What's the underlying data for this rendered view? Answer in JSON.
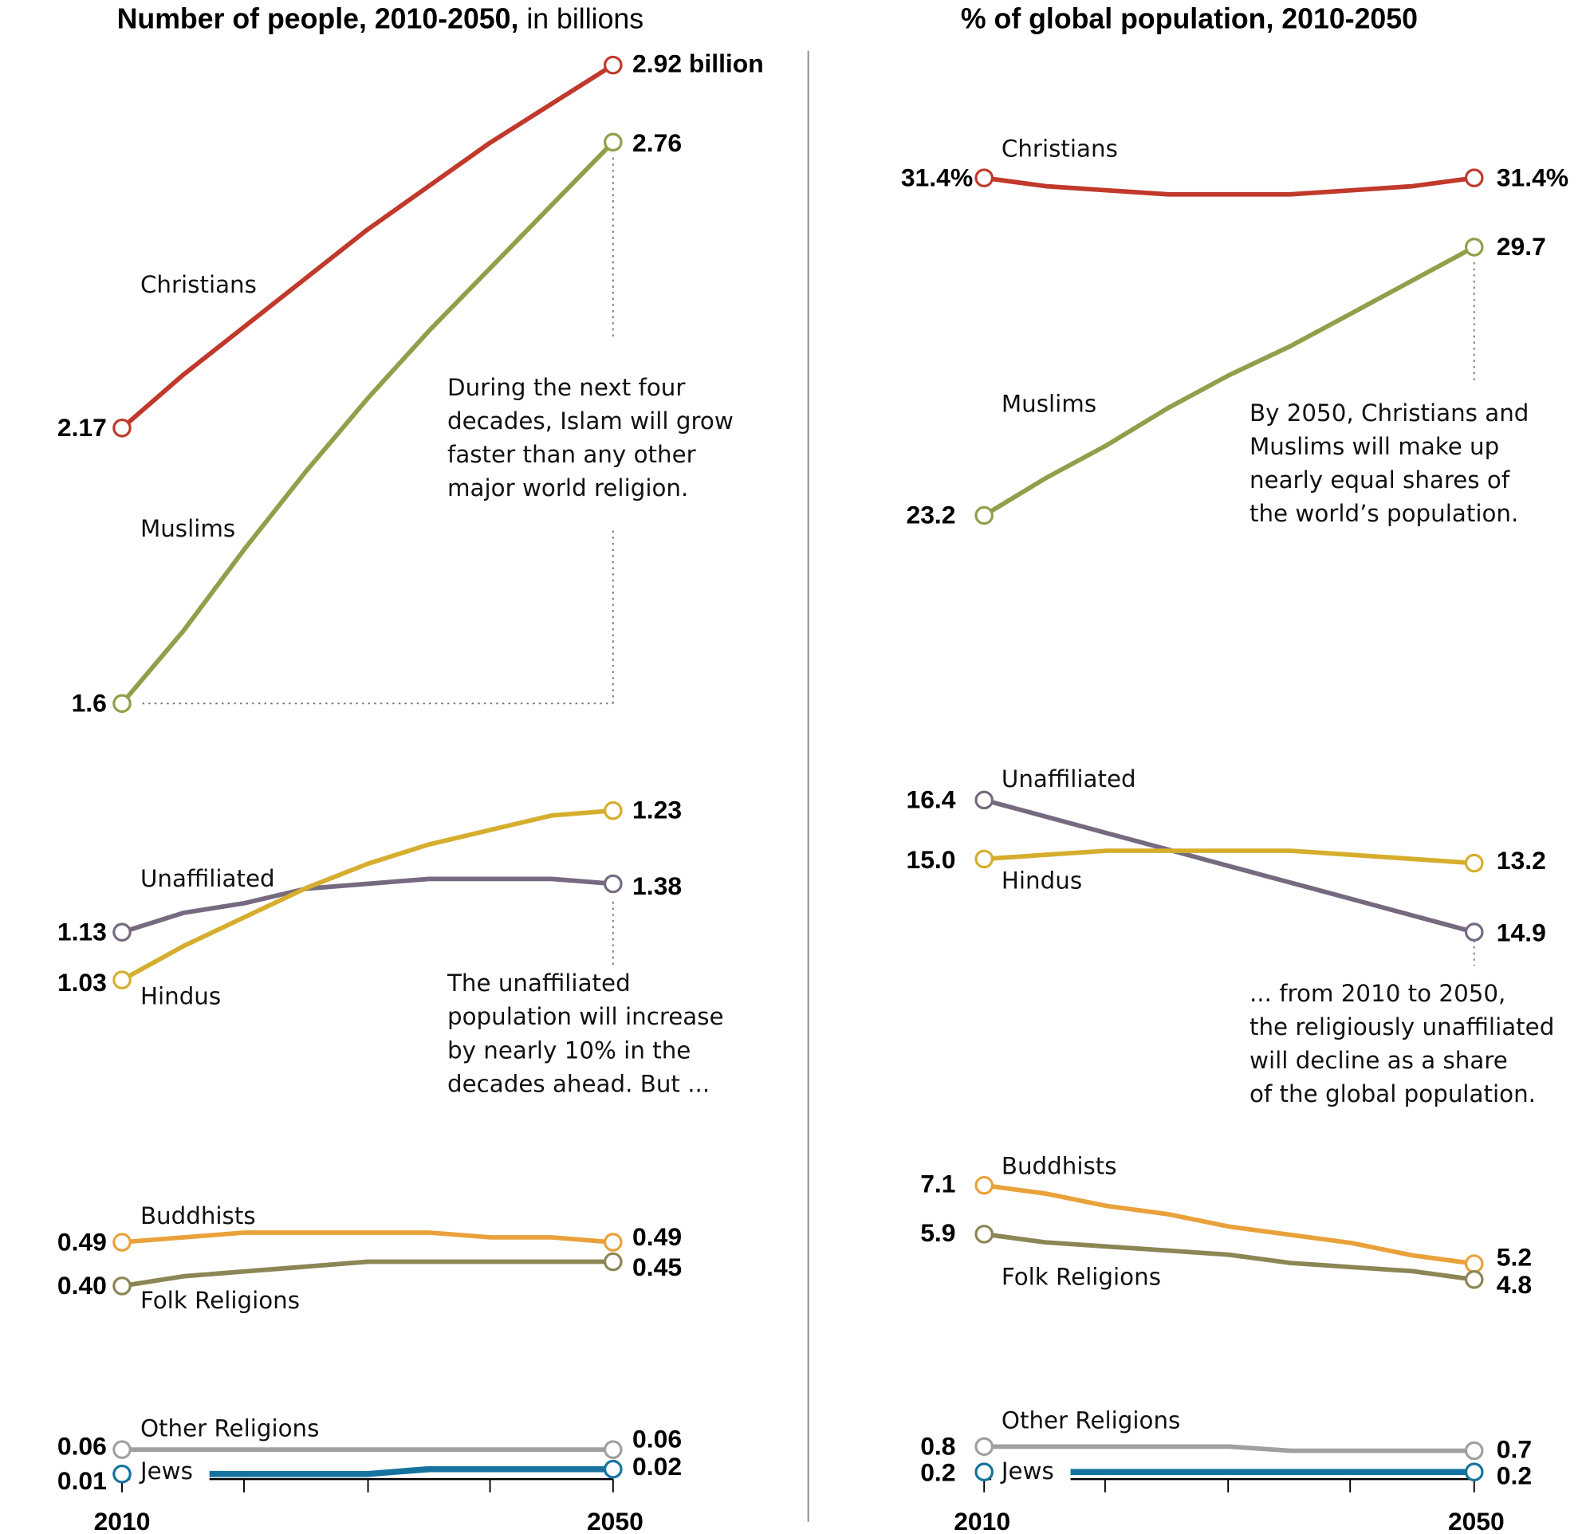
{
  "chart_data": [
    {
      "type": "line",
      "title": "Number of people, 2010-2050,",
      "title_suffix": "in billions",
      "x": [
        2010,
        2015,
        2020,
        2025,
        2030,
        2035,
        2040,
        2045,
        2050
      ],
      "x_tick_labels": [
        "2010",
        "2050"
      ],
      "series": [
        {
          "name": "Christians",
          "color": "#c0392b",
          "values": [
            2.17,
            2.28,
            2.38,
            2.48,
            2.58,
            2.67,
            2.76,
            2.84,
            2.92
          ],
          "start_label": "2.17",
          "end_label": "2.92 billion"
        },
        {
          "name": "Muslims",
          "color": "#8fa04a",
          "values": [
            1.6,
            1.75,
            1.92,
            2.08,
            2.23,
            2.37,
            2.5,
            2.63,
            2.76
          ],
          "start_label": "1.6",
          "end_label": "2.76"
        },
        {
          "name": "Unaffiliated",
          "color": "#766a80",
          "values": [
            1.13,
            1.17,
            1.19,
            1.22,
            1.23,
            1.24,
            1.24,
            1.24,
            1.23
          ],
          "start_label": "1.13",
          "end_label": "1.23"
        },
        {
          "name": "Hindus",
          "color": "#d6ae2e",
          "values": [
            1.03,
            1.1,
            1.16,
            1.22,
            1.27,
            1.31,
            1.34,
            1.37,
            1.38
          ],
          "start_label": "1.03",
          "end_label": "1.38"
        },
        {
          "name": "Buddhists",
          "color": "#e9a23b",
          "values": [
            0.49,
            0.5,
            0.51,
            0.51,
            0.51,
            0.51,
            0.5,
            0.5,
            0.49
          ],
          "start_label": "0.49",
          "end_label": "0.49"
        },
        {
          "name": "Folk Religions",
          "color": "#8c8656",
          "values": [
            0.4,
            0.42,
            0.43,
            0.44,
            0.45,
            0.45,
            0.45,
            0.45,
            0.45
          ],
          "start_label": "0.40",
          "end_label": "0.45"
        },
        {
          "name": "Other Religions",
          "color": "#a0a0a0",
          "values": [
            0.06,
            0.06,
            0.06,
            0.06,
            0.06,
            0.06,
            0.06,
            0.06,
            0.06
          ],
          "start_label": "0.06",
          "end_label": "0.06"
        },
        {
          "name": "Jews",
          "color": "#1673a0",
          "values": [
            0.01,
            0.01,
            0.01,
            0.01,
            0.01,
            0.02,
            0.02,
            0.02,
            0.02
          ],
          "start_label": "0.01",
          "end_label": "0.02"
        }
      ],
      "annotations": [
        [
          "During the next four",
          "decades, Islam will grow",
          "faster than any other",
          "major world religion."
        ],
        [
          "The unaffiliated",
          "population will increase",
          "by nearly 10% in the",
          "decades ahead. But ..."
        ]
      ]
    },
    {
      "type": "line",
      "title": "% of global population, 2010-2050",
      "x": [
        2010,
        2015,
        2020,
        2025,
        2030,
        2035,
        2040,
        2045,
        2050
      ],
      "x_tick_labels": [
        "2010",
        "2050"
      ],
      "series": [
        {
          "name": "Christians",
          "color": "#c0392b",
          "values": [
            31.4,
            31.2,
            31.1,
            31.0,
            31.0,
            31.0,
            31.1,
            31.2,
            31.4
          ],
          "start_label": "31.4%",
          "end_label": "31.4%"
        },
        {
          "name": "Muslims",
          "color": "#8fa04a",
          "values": [
            23.2,
            24.1,
            24.9,
            25.8,
            26.6,
            27.3,
            28.1,
            28.9,
            29.7
          ],
          "start_label": "23.2",
          "end_label": "29.7"
        },
        {
          "name": "Unaffiliated",
          "color": "#766a80",
          "values": [
            16.4,
            16.0,
            15.6,
            15.2,
            14.8,
            14.4,
            14.0,
            13.6,
            13.2
          ],
          "start_label": "16.4",
          "end_label": "13.2"
        },
        {
          "name": "Hindus",
          "color": "#d6ae2e",
          "values": [
            15.0,
            15.1,
            15.2,
            15.2,
            15.2,
            15.2,
            15.1,
            15.0,
            14.9
          ],
          "start_label": "15.0",
          "end_label": "14.9"
        },
        {
          "name": "Buddhists",
          "color": "#e9a23b",
          "values": [
            7.1,
            6.9,
            6.6,
            6.4,
            6.1,
            5.9,
            5.7,
            5.4,
            5.2
          ],
          "start_label": "7.1",
          "end_label": "5.2"
        },
        {
          "name": "Folk Religions",
          "color": "#8c8656",
          "values": [
            5.9,
            5.7,
            5.6,
            5.5,
            5.4,
            5.2,
            5.1,
            5.0,
            4.8
          ],
          "start_label": "5.9",
          "end_label": "4.8"
        },
        {
          "name": "Other Religions",
          "color": "#a0a0a0",
          "values": [
            0.8,
            0.8,
            0.8,
            0.8,
            0.8,
            0.7,
            0.7,
            0.7,
            0.7
          ],
          "start_label": "0.8",
          "end_label": "0.7"
        },
        {
          "name": "Jews",
          "color": "#1673a0",
          "values": [
            0.2,
            0.2,
            0.2,
            0.2,
            0.2,
            0.2,
            0.2,
            0.2,
            0.2
          ],
          "start_label": "0.2",
          "end_label": "0.2"
        }
      ],
      "annotations": [
        [
          "By 2050, Christians and",
          "Muslims will make up",
          "nearly equal shares of",
          "the world’s population."
        ],
        [
          "... from 2010 to 2050,",
          "the religiously unaffiliated",
          "will decline as a share",
          "of the global population."
        ]
      ]
    }
  ]
}
